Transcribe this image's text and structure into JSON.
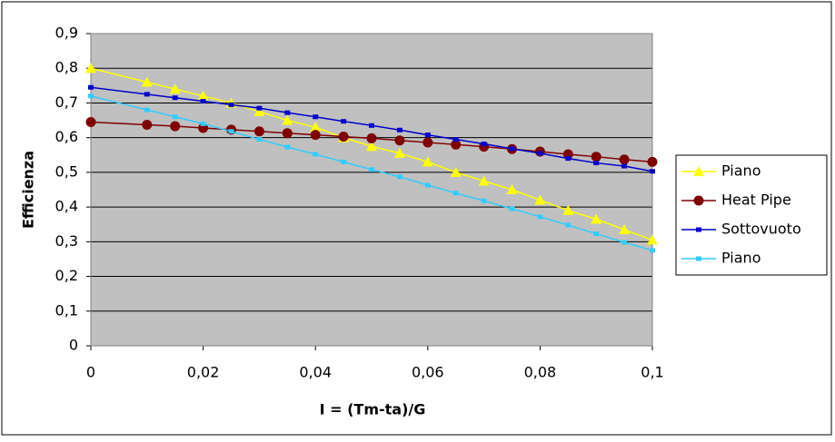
{
  "chart_data": {
    "type": "line",
    "x_label": "I = (Tm-ta)/G",
    "y_label": "Efficienza",
    "x": [
      0,
      0.01,
      0.015,
      0.02,
      0.025,
      0.03,
      0.035,
      0.04,
      0.045,
      0.05,
      0.055,
      0.06,
      0.065,
      0.07,
      0.075,
      0.08,
      0.085,
      0.09,
      0.095,
      0.1
    ],
    "series": [
      {
        "name": "Piano",
        "color": "#ffff00",
        "marker": "triangle",
        "values": [
          0.8,
          0.76,
          0.74,
          0.72,
          0.7,
          0.675,
          0.65,
          0.63,
          0.6,
          0.575,
          0.555,
          0.53,
          0.5,
          0.475,
          0.45,
          0.42,
          0.39,
          0.365,
          0.335,
          0.305
        ]
      },
      {
        "name": "Heat Pipe",
        "color": "#800000",
        "marker": "circle",
        "values": [
          0.645,
          0.637,
          0.633,
          0.628,
          0.623,
          0.618,
          0.613,
          0.608,
          0.603,
          0.598,
          0.592,
          0.586,
          0.58,
          0.574,
          0.567,
          0.56,
          0.552,
          0.545,
          0.537,
          0.53
        ]
      },
      {
        "name": "Sottovuoto",
        "color": "#0000cc",
        "marker": "square",
        "values": [
          0.745,
          0.725,
          0.715,
          0.705,
          0.695,
          0.685,
          0.672,
          0.66,
          0.647,
          0.635,
          0.622,
          0.608,
          0.595,
          0.582,
          0.568,
          0.555,
          0.54,
          0.527,
          0.518,
          0.503
        ]
      },
      {
        "name": "Piano",
        "color": "#33ccff",
        "marker": "square",
        "values": [
          0.72,
          0.68,
          0.66,
          0.64,
          0.618,
          0.595,
          0.573,
          0.552,
          0.53,
          0.508,
          0.487,
          0.463,
          0.44,
          0.418,
          0.395,
          0.372,
          0.348,
          0.323,
          0.298,
          0.275
        ]
      }
    ],
    "xlim": [
      0,
      0.1
    ],
    "xticks": [
      0,
      {
        "value": 0.02,
        "label": "0,02"
      },
      {
        "value": 0.04,
        "label": "0,04"
      },
      {
        "value": 0.06,
        "label": "0,06"
      },
      {
        "value": 0.08,
        "label": "0,08"
      },
      {
        "value": 0.1,
        "label": "0,1"
      }
    ],
    "ylim": [
      0,
      0.9
    ],
    "yticks": [
      0,
      {
        "value": 0.1,
        "label": "0,1"
      },
      {
        "value": 0.2,
        "label": "0,2"
      },
      {
        "value": 0.3,
        "label": "0,3"
      },
      {
        "value": 0.4,
        "label": "0,4"
      },
      {
        "value": 0.5,
        "label": "0,5"
      },
      {
        "value": 0.6,
        "label": "0,6"
      },
      {
        "value": 0.7,
        "label": "0,7"
      },
      {
        "value": 0.8,
        "label": "0,8"
      },
      {
        "value": 0.9,
        "label": "0,9"
      }
    ],
    "grid": true,
    "plot_background": "#c0c0c0",
    "legend": "right"
  }
}
